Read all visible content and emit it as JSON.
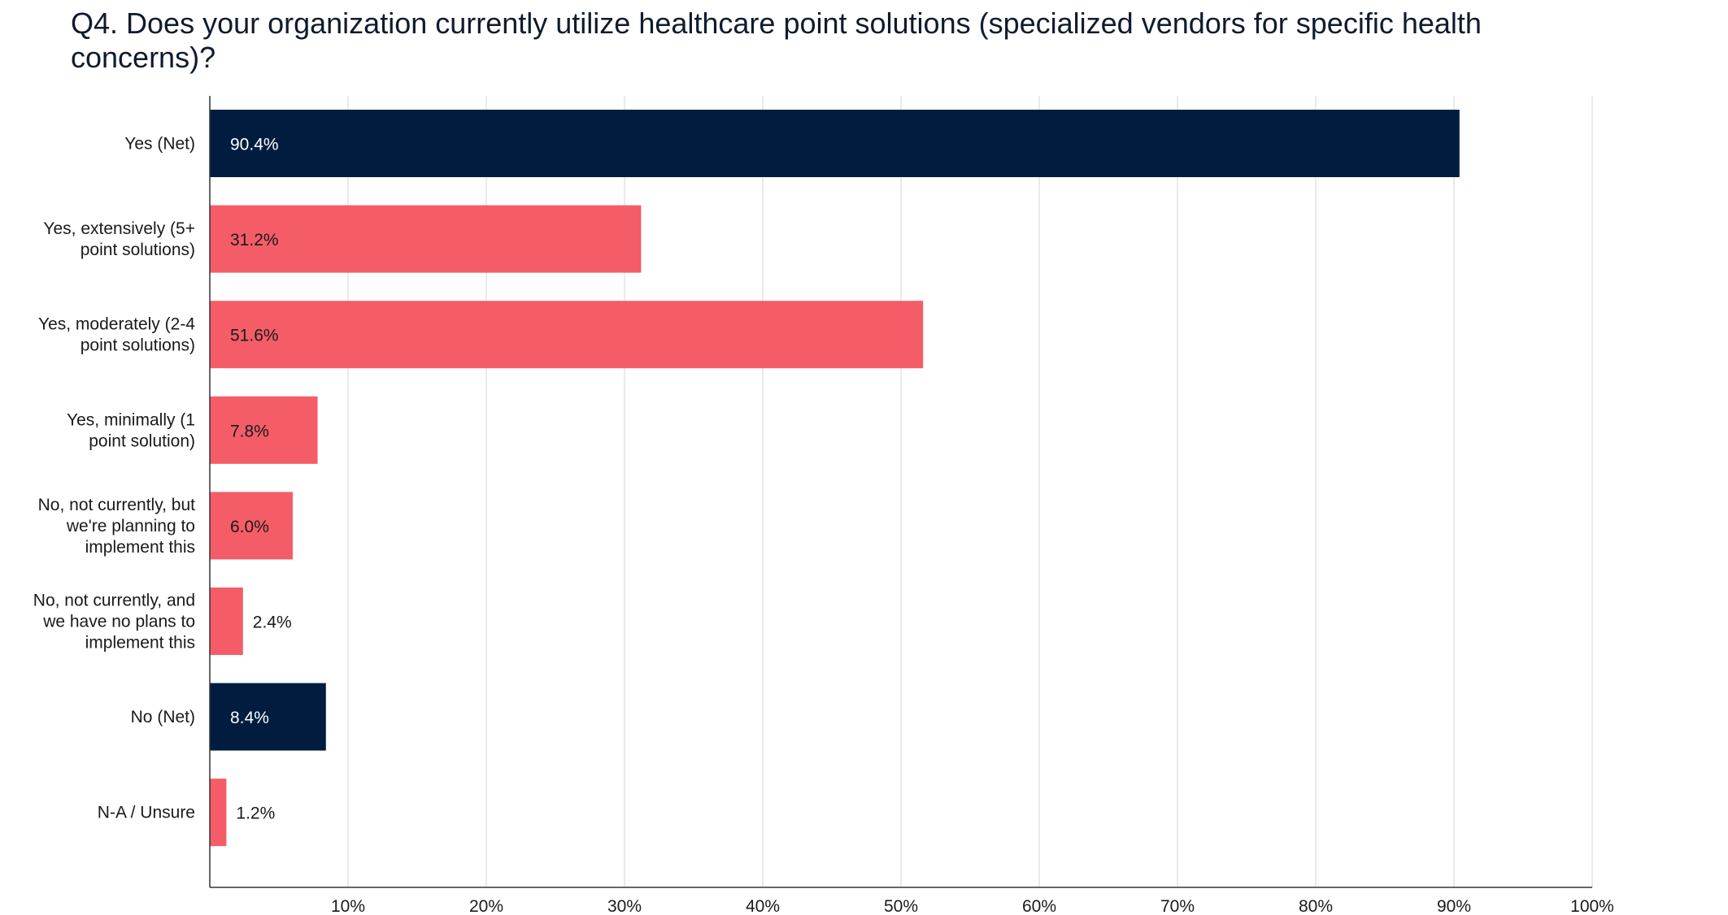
{
  "chart_data": {
    "type": "bar",
    "orientation": "horizontal",
    "title": "Q4. Does your organization currently utilize healthcare point solutions (specialized vendors for specific health concerns)?",
    "xlabel": "",
    "ylabel": "",
    "xlim": [
      0,
      100
    ],
    "x_ticks": [
      "10%",
      "20%",
      "30%",
      "40%",
      "50%",
      "60%",
      "70%",
      "80%",
      "90%",
      "100%"
    ],
    "x_tick_values": [
      10,
      20,
      30,
      40,
      50,
      60,
      70,
      80,
      90,
      100
    ],
    "grid": true,
    "legend": "none",
    "categories": [
      "Yes (Net)",
      "Yes, extensively (5+ point solutions)",
      "Yes, moderately (2-4 point solutions)",
      "Yes, minimally (1 point solution)",
      "No, not currently, but we're planning to implement this",
      "No, not currently, and we have no plans to implement this",
      "No (Net)",
      "N-A / Unsure"
    ],
    "category_lines": [
      [
        "Yes (Net)"
      ],
      [
        "Yes, extensively (5+",
        "point solutions)"
      ],
      [
        "Yes, moderately (2-4",
        "point solutions)"
      ],
      [
        "Yes, minimally (1",
        "point solution)"
      ],
      [
        "No, not currently, but",
        "we're planning to",
        "implement this"
      ],
      [
        "No, not currently, and",
        "we have no plans to",
        "implement this"
      ],
      [
        "No (Net)"
      ],
      [
        "N-A / Unsure"
      ]
    ],
    "values": [
      90.4,
      31.2,
      51.6,
      7.8,
      6.0,
      2.4,
      8.4,
      1.2
    ],
    "value_labels": [
      "90.4%",
      "31.2%",
      "51.6%",
      "7.8%",
      "6.0%",
      "2.4%",
      "8.4%",
      "1.2%"
    ],
    "bar_kind": [
      "net",
      "detail",
      "detail",
      "detail",
      "detail",
      "detail",
      "net",
      "detail"
    ],
    "colors": {
      "net": "#001d3f",
      "detail": "#f45d68",
      "grid": "#e3e3e3",
      "axis": "#333333"
    }
  }
}
